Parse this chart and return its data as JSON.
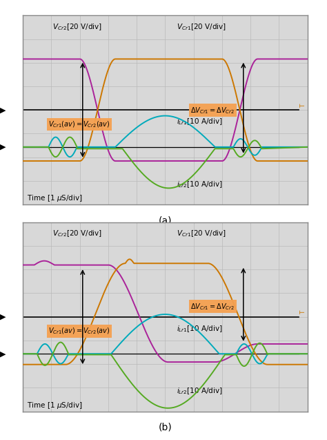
{
  "bg_color": "#d8d8d8",
  "grid_color": "#b8b8b8",
  "border_color": "#888888",
  "vcr2_color": "#aa2299",
  "vcr1_color": "#cc7700",
  "ilr1_color": "#00aabb",
  "ilr2_color": "#55aa22",
  "annotation_bg": "#f5a050",
  "title_a": "(a)",
  "title_b": "(b)"
}
